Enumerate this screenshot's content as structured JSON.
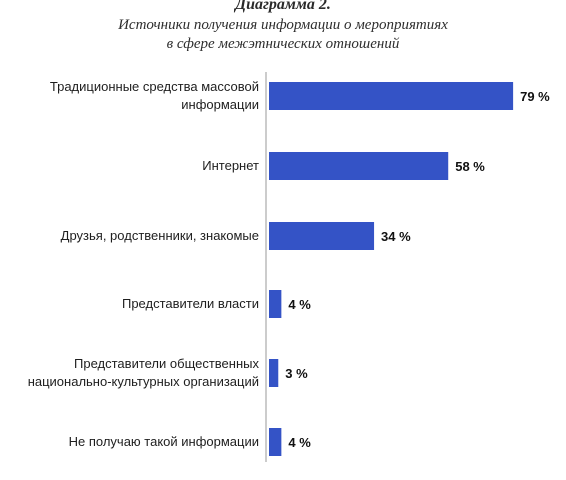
{
  "figure_label": "Диаграмма 2.",
  "chart_data": {
    "type": "bar",
    "orientation": "horizontal",
    "title_lines": [
      "Источники получения информации о мероприятиях",
      "в сфере межэтнических отношений"
    ],
    "categories": [
      [
        "Традиционные средства массовой",
        "информации"
      ],
      [
        "Интернет"
      ],
      [
        "Друзья, родственники, знакомые"
      ],
      [
        "Представители власти"
      ],
      [
        "Представители общественных",
        "национально-культурных организаций"
      ],
      [
        "Не получаю такой информации"
      ]
    ],
    "values": [
      79,
      58,
      34,
      4,
      3,
      4
    ],
    "value_labels": [
      "79 %",
      "58 %",
      "34 %",
      "4 %",
      "3 %",
      "4 %"
    ],
    "unit": "%",
    "xlim": [
      0,
      100
    ],
    "grid": false,
    "legend": "none",
    "bar_color": "#3453c6"
  }
}
